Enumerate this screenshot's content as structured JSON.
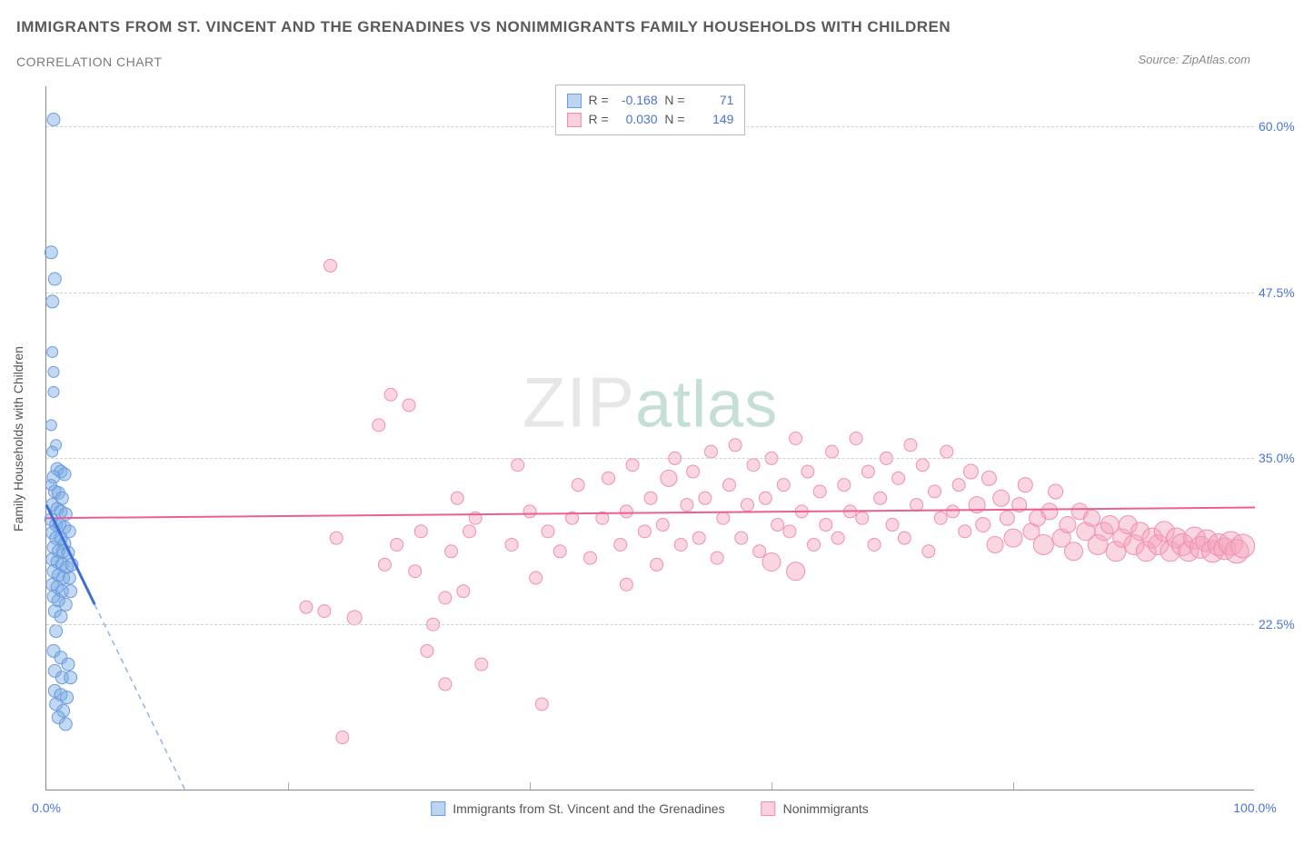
{
  "title": "IMMIGRANTS FROM ST. VINCENT AND THE GRENADINES VS NONIMMIGRANTS FAMILY HOUSEHOLDS WITH CHILDREN",
  "subtitle": "CORRELATION CHART",
  "source": "Source: ZipAtlas.com",
  "watermark": {
    "part1": "ZIP",
    "part2": "atlas"
  },
  "chart": {
    "type": "scatter",
    "xlim": [
      0,
      100
    ],
    "ylim": [
      10,
      63
    ],
    "xticks": [
      0,
      20,
      40,
      60,
      80,
      100
    ],
    "xtick_labels_visible": {
      "0": "0.0%",
      "100": "100.0%"
    },
    "yticks": [
      22.5,
      35.0,
      47.5,
      60.0
    ],
    "ytick_labels": [
      "22.5%",
      "35.0%",
      "47.5%",
      "60.0%"
    ],
    "ylabel": "Family Households with Children",
    "grid_color": "#d0d0d0",
    "background_color": "#ffffff",
    "axis_color": "#888888",
    "tick_label_color": "#4a74d8",
    "series": [
      {
        "name": "Immigrants from St. Vincent and the Grenadines",
        "color_fill": "rgba(123,170,227,0.45)",
        "color_stroke": "#6a9be0",
        "swatch_fill": "#bcd3f2",
        "swatch_border": "#6a9be0",
        "R": "-0.168",
        "N": "71",
        "trendline": {
          "x1": 0,
          "y1": 31.5,
          "x2": 4.0,
          "y2": 24.0,
          "solid_color": "#3f6fd6",
          "width": 3
        },
        "trendline_ext": {
          "x1": 4.0,
          "y1": 24.0,
          "x2": 11.5,
          "y2": 10.0,
          "dash_color": "#8fb4e8"
        },
        "points": [
          [
            0.6,
            60.5,
            7
          ],
          [
            0.4,
            50.5,
            7
          ],
          [
            0.7,
            48.5,
            7
          ],
          [
            0.5,
            46.8,
            7
          ],
          [
            0.5,
            43.0,
            6
          ],
          [
            0.6,
            41.5,
            6
          ],
          [
            0.6,
            40.0,
            6
          ],
          [
            0.4,
            37.5,
            6
          ],
          [
            0.8,
            36.0,
            6
          ],
          [
            0.5,
            35.5,
            6
          ],
          [
            0.9,
            34.2,
            7
          ],
          [
            1.2,
            34.0,
            7
          ],
          [
            0.6,
            33.6,
            7
          ],
          [
            1.5,
            33.8,
            7
          ],
          [
            0.4,
            33.0,
            6
          ],
          [
            0.7,
            32.5,
            7
          ],
          [
            1.0,
            32.4,
            7
          ],
          [
            1.3,
            32.0,
            7
          ],
          [
            0.5,
            31.5,
            7
          ],
          [
            0.9,
            31.2,
            7
          ],
          [
            1.2,
            31.0,
            7
          ],
          [
            1.6,
            30.8,
            7
          ],
          [
            0.4,
            30.4,
            7
          ],
          [
            0.8,
            30.0,
            7
          ],
          [
            1.1,
            30.0,
            7
          ],
          [
            1.5,
            29.8,
            7
          ],
          [
            1.9,
            29.5,
            7
          ],
          [
            0.5,
            29.4,
            7
          ],
          [
            0.8,
            29.0,
            7
          ],
          [
            1.2,
            29.0,
            7
          ],
          [
            1.5,
            28.6,
            7
          ],
          [
            0.6,
            28.3,
            7
          ],
          [
            1.0,
            28.0,
            7
          ],
          [
            1.4,
            28.0,
            7
          ],
          [
            1.8,
            27.9,
            7
          ],
          [
            0.5,
            27.4,
            7
          ],
          [
            0.9,
            27.2,
            7
          ],
          [
            1.3,
            27.0,
            7
          ],
          [
            1.7,
            26.8,
            7
          ],
          [
            2.1,
            27.0,
            7
          ],
          [
            0.6,
            26.5,
            7
          ],
          [
            1.0,
            26.2,
            7
          ],
          [
            1.4,
            26.0,
            7
          ],
          [
            1.9,
            26.0,
            7
          ],
          [
            0.5,
            25.5,
            7
          ],
          [
            0.9,
            25.3,
            7
          ],
          [
            1.3,
            25.0,
            7
          ],
          [
            2.0,
            25.0,
            7
          ],
          [
            0.6,
            24.6,
            7
          ],
          [
            1.0,
            24.3,
            7
          ],
          [
            1.6,
            24.0,
            7
          ],
          [
            0.7,
            23.5,
            7
          ],
          [
            1.2,
            23.1,
            7
          ],
          [
            0.8,
            22.0,
            7
          ],
          [
            0.6,
            20.5,
            7
          ],
          [
            1.2,
            20.0,
            7
          ],
          [
            1.8,
            19.5,
            7
          ],
          [
            0.7,
            19.0,
            7
          ],
          [
            1.3,
            18.5,
            7
          ],
          [
            2.0,
            18.5,
            7
          ],
          [
            0.7,
            17.5,
            7
          ],
          [
            1.2,
            17.2,
            7
          ],
          [
            1.7,
            17.0,
            7
          ],
          [
            0.8,
            16.5,
            7
          ],
          [
            1.4,
            16.0,
            7
          ],
          [
            1.0,
            15.5,
            7
          ],
          [
            1.6,
            15.0,
            7
          ]
        ]
      },
      {
        "name": "Nonimmigrants",
        "color_fill": "rgba(244,164,189,0.45)",
        "color_stroke": "#ef8fb2",
        "swatch_fill": "#f8d0de",
        "swatch_border": "#ef8fb2",
        "R": "0.030",
        "N": "149",
        "trendline": {
          "x1": 0,
          "y1": 30.5,
          "x2": 100,
          "y2": 31.3,
          "solid_color": "#ec5f93",
          "width": 2
        },
        "points": [
          [
            23.5,
            49.5,
            7
          ],
          [
            28.5,
            39.8,
            7
          ],
          [
            27.5,
            37.5,
            7
          ],
          [
            30.0,
            39.0,
            7
          ],
          [
            24.0,
            29.0,
            7
          ],
          [
            21.5,
            23.8,
            7
          ],
          [
            23.0,
            23.5,
            7
          ],
          [
            25.5,
            23.0,
            8
          ],
          [
            29.0,
            28.5,
            7
          ],
          [
            28.0,
            27.0,
            7
          ],
          [
            30.5,
            26.5,
            7
          ],
          [
            31.0,
            29.5,
            7
          ],
          [
            24.5,
            14.0,
            7
          ],
          [
            31.5,
            20.5,
            7
          ],
          [
            33.0,
            24.5,
            7
          ],
          [
            32.0,
            22.5,
            7
          ],
          [
            33.5,
            28.0,
            7
          ],
          [
            34.5,
            25.0,
            7
          ],
          [
            35.0,
            29.5,
            7
          ],
          [
            34.0,
            32.0,
            7
          ],
          [
            35.5,
            30.5,
            7
          ],
          [
            33.0,
            18.0,
            7
          ],
          [
            36.0,
            19.5,
            7
          ],
          [
            39.0,
            34.5,
            7
          ],
          [
            40.0,
            31.0,
            7
          ],
          [
            38.5,
            28.5,
            7
          ],
          [
            40.5,
            26.0,
            7
          ],
          [
            41.5,
            29.5,
            7
          ],
          [
            41.0,
            16.5,
            7
          ],
          [
            42.5,
            28.0,
            7
          ],
          [
            43.5,
            30.5,
            7
          ],
          [
            44.0,
            33.0,
            7
          ],
          [
            45.0,
            27.5,
            7
          ],
          [
            46.0,
            30.5,
            7
          ],
          [
            46.5,
            33.5,
            7
          ],
          [
            47.5,
            28.5,
            7
          ],
          [
            48.0,
            31.0,
            7
          ],
          [
            48.5,
            34.5,
            7
          ],
          [
            48.0,
            25.5,
            7
          ],
          [
            49.5,
            29.5,
            7
          ],
          [
            50.0,
            32.0,
            7
          ],
          [
            50.5,
            27.0,
            7
          ],
          [
            51.0,
            30.0,
            7
          ],
          [
            51.5,
            33.5,
            9
          ],
          [
            52.0,
            35.0,
            7
          ],
          [
            52.5,
            28.5,
            7
          ],
          [
            53.0,
            31.5,
            7
          ],
          [
            53.5,
            34.0,
            7
          ],
          [
            54.0,
            29.0,
            7
          ],
          [
            54.5,
            32.0,
            7
          ],
          [
            55.0,
            35.5,
            7
          ],
          [
            55.5,
            27.5,
            7
          ],
          [
            56.0,
            30.5,
            7
          ],
          [
            56.5,
            33.0,
            7
          ],
          [
            57.0,
            36.0,
            7
          ],
          [
            57.5,
            29.0,
            7
          ],
          [
            58.0,
            31.5,
            7
          ],
          [
            58.5,
            34.5,
            7
          ],
          [
            59.0,
            28.0,
            7
          ],
          [
            59.5,
            32.0,
            7
          ],
          [
            60.0,
            35.0,
            7
          ],
          [
            60.5,
            30.0,
            7
          ],
          [
            60.0,
            27.2,
            10
          ],
          [
            61.0,
            33.0,
            7
          ],
          [
            61.5,
            29.5,
            7
          ],
          [
            62.0,
            36.5,
            7
          ],
          [
            62.0,
            26.5,
            10
          ],
          [
            62.5,
            31.0,
            7
          ],
          [
            63.0,
            34.0,
            7
          ],
          [
            63.5,
            28.5,
            7
          ],
          [
            64.0,
            32.5,
            7
          ],
          [
            64.5,
            30.0,
            7
          ],
          [
            65.0,
            35.5,
            7
          ],
          [
            65.5,
            29.0,
            7
          ],
          [
            66.0,
            33.0,
            7
          ],
          [
            66.5,
            31.0,
            7
          ],
          [
            67.0,
            36.5,
            7
          ],
          [
            67.5,
            30.5,
            7
          ],
          [
            68.0,
            34.0,
            7
          ],
          [
            68.5,
            28.5,
            7
          ],
          [
            69.0,
            32.0,
            7
          ],
          [
            69.5,
            35.0,
            7
          ],
          [
            70.0,
            30.0,
            7
          ],
          [
            70.5,
            33.5,
            7
          ],
          [
            71.0,
            29.0,
            7
          ],
          [
            71.5,
            36.0,
            7
          ],
          [
            72.0,
            31.5,
            7
          ],
          [
            72.5,
            34.5,
            7
          ],
          [
            73.0,
            28.0,
            7
          ],
          [
            73.5,
            32.5,
            7
          ],
          [
            74.0,
            30.5,
            7
          ],
          [
            74.5,
            35.5,
            7
          ],
          [
            75.0,
            31.0,
            7
          ],
          [
            75.5,
            33.0,
            7
          ],
          [
            76.0,
            29.5,
            7
          ],
          [
            76.5,
            34.0,
            8
          ],
          [
            77.0,
            31.5,
            9
          ],
          [
            77.5,
            30.0,
            8
          ],
          [
            78.0,
            33.5,
            8
          ],
          [
            78.5,
            28.5,
            9
          ],
          [
            79.0,
            32.0,
            9
          ],
          [
            79.5,
            30.5,
            8
          ],
          [
            80.0,
            29.0,
            10
          ],
          [
            80.5,
            31.5,
            8
          ],
          [
            81.0,
            33.0,
            8
          ],
          [
            81.5,
            29.5,
            9
          ],
          [
            82.0,
            30.5,
            9
          ],
          [
            82.5,
            28.5,
            11
          ],
          [
            83.0,
            31.0,
            9
          ],
          [
            83.5,
            32.5,
            8
          ],
          [
            84.0,
            29.0,
            10
          ],
          [
            84.5,
            30.0,
            9
          ],
          [
            85.0,
            28.0,
            10
          ],
          [
            85.5,
            31.0,
            9
          ],
          [
            86.0,
            29.5,
            10
          ],
          [
            86.5,
            30.5,
            9
          ],
          [
            87.0,
            28.5,
            11
          ],
          [
            87.5,
            29.5,
            10
          ],
          [
            88.0,
            30.0,
            10
          ],
          [
            88.5,
            28.0,
            11
          ],
          [
            89.0,
            29.0,
            10
          ],
          [
            89.5,
            30.0,
            10
          ],
          [
            90.0,
            28.5,
            11
          ],
          [
            90.5,
            29.5,
            10
          ],
          [
            91.0,
            28.0,
            11
          ],
          [
            91.5,
            29.0,
            11
          ],
          [
            92.0,
            28.5,
            11
          ],
          [
            92.5,
            29.5,
            11
          ],
          [
            93.0,
            28.0,
            11
          ],
          [
            93.5,
            29.0,
            11
          ],
          [
            94.0,
            28.5,
            12
          ],
          [
            94.5,
            28.0,
            11
          ],
          [
            95.0,
            29.0,
            12
          ],
          [
            95.5,
            28.3,
            12
          ],
          [
            96.0,
            28.8,
            12
          ],
          [
            96.5,
            28.0,
            12
          ],
          [
            97.0,
            28.5,
            12
          ],
          [
            97.5,
            28.2,
            12
          ],
          [
            98.0,
            28.6,
            13
          ],
          [
            98.5,
            28.0,
            13
          ],
          [
            99.0,
            28.4,
            13
          ]
        ]
      }
    ],
    "legend_bottom": [
      {
        "label": "Immigrants from St. Vincent and the Grenadines",
        "swatch_fill": "#bcd3f2",
        "swatch_border": "#6a9be0"
      },
      {
        "label": "Nonimmigrants",
        "swatch_fill": "#f8d0de",
        "swatch_border": "#ef8fb2"
      }
    ]
  }
}
